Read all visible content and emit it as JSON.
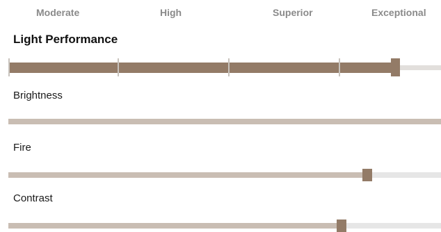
{
  "scale": {
    "labels": [
      "Moderate",
      "High",
      "Superior",
      "Exceptional"
    ]
  },
  "light_performance": {
    "title": "Light Performance",
    "level": 0.895,
    "color": "#937b67"
  },
  "metrics": [
    {
      "label": "Brightness",
      "level": 1.0
    },
    {
      "label": "Fire",
      "level": 0.83
    },
    {
      "label": "Contrast",
      "level": 0.77
    }
  ],
  "colors": {
    "accent": "#937b67",
    "sub_fill": "#c9bdb3",
    "track": "#e6e6e6",
    "scale_text": "#8a8a8a"
  }
}
